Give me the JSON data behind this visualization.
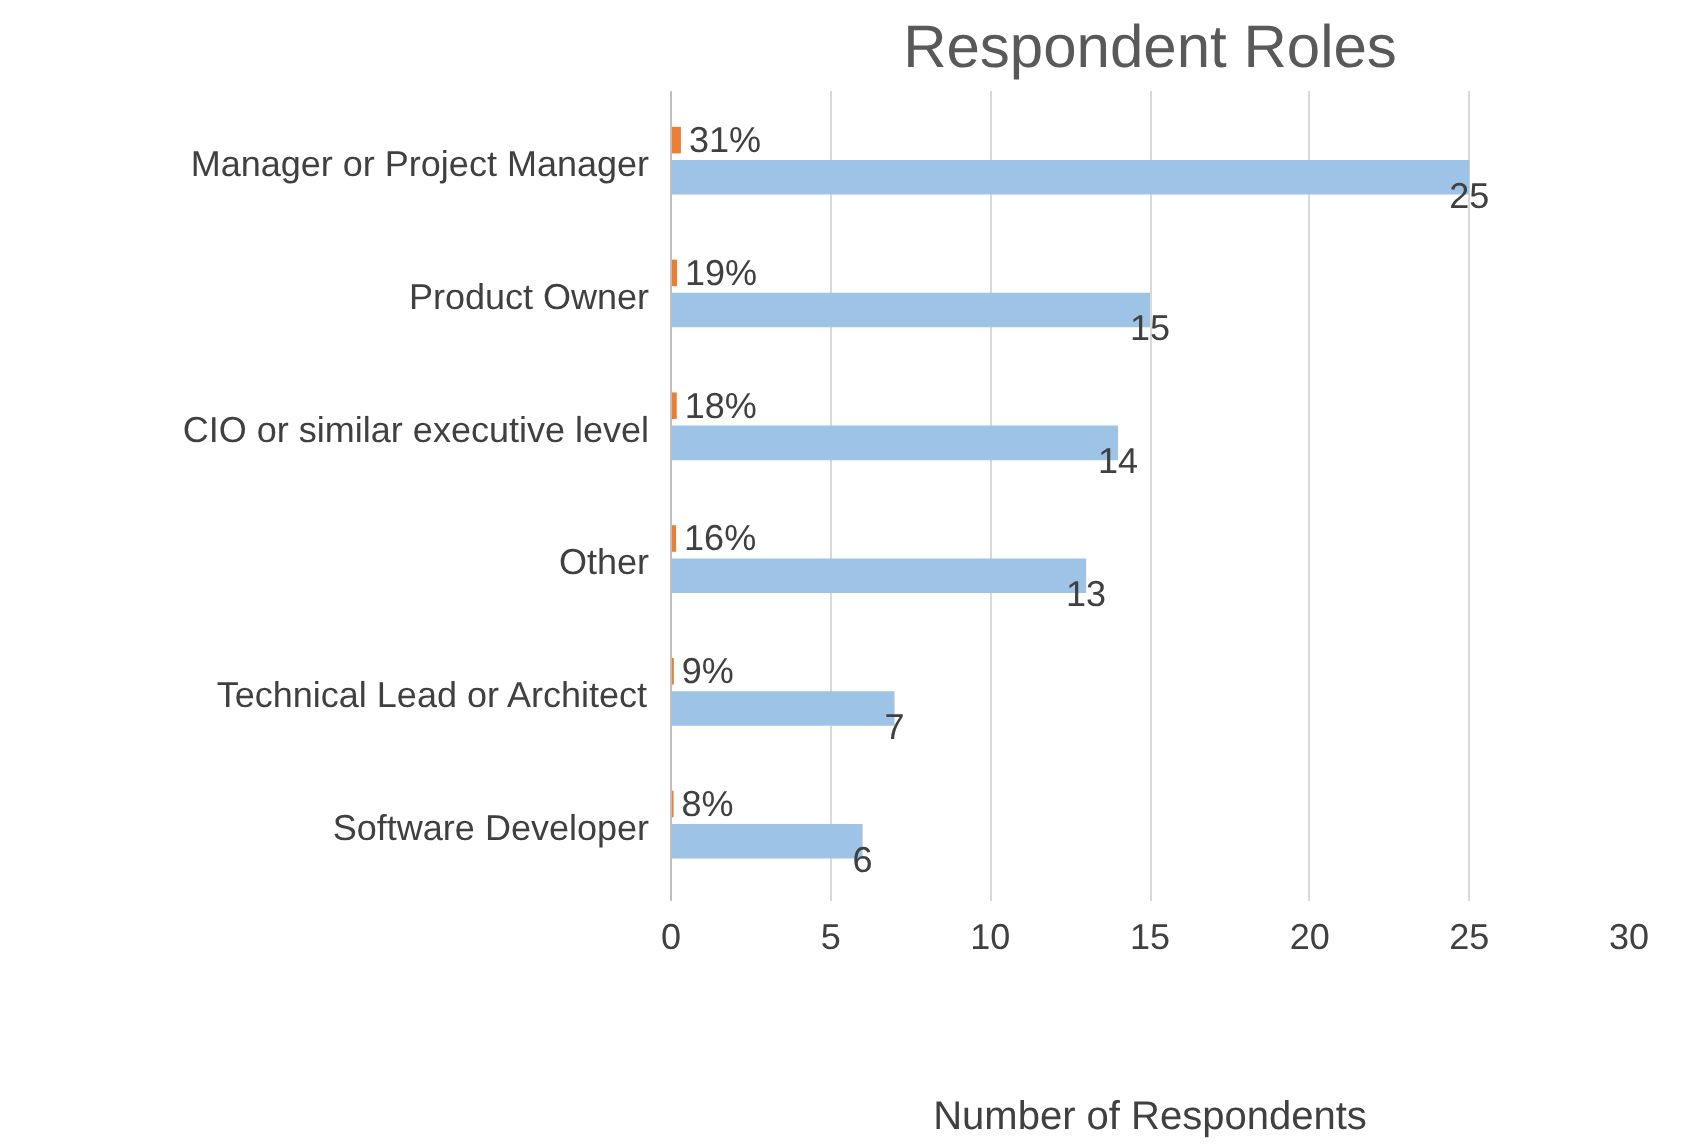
{
  "chart_data": {
    "type": "bar",
    "orientation": "horizontal",
    "title": "Respondent Roles",
    "xlabel": "Number of Respondents",
    "categories": [
      "Manager or Project Manager",
      "Product Owner",
      "CIO or similar executive level",
      "Other",
      "Technical Lead or Architect",
      "Software Developer"
    ],
    "series": [
      {
        "color": "#ed7d31",
        "values": [
          0.31,
          0.19,
          0.18,
          0.16,
          0.09,
          0.08
        ],
        "value_labels": [
          "31%",
          "19%",
          "18%",
          "16%",
          "9%",
          "8%"
        ]
      },
      {
        "color": "#9dc3e6",
        "values": [
          25,
          15,
          14,
          13,
          7,
          6
        ],
        "value_labels": [
          "25",
          "15",
          "14",
          "13",
          "7",
          "6"
        ]
      }
    ],
    "xlim": [
      0,
      30
    ],
    "xticks": [
      0,
      5,
      10,
      15,
      20,
      25,
      30
    ],
    "grid": "x"
  }
}
